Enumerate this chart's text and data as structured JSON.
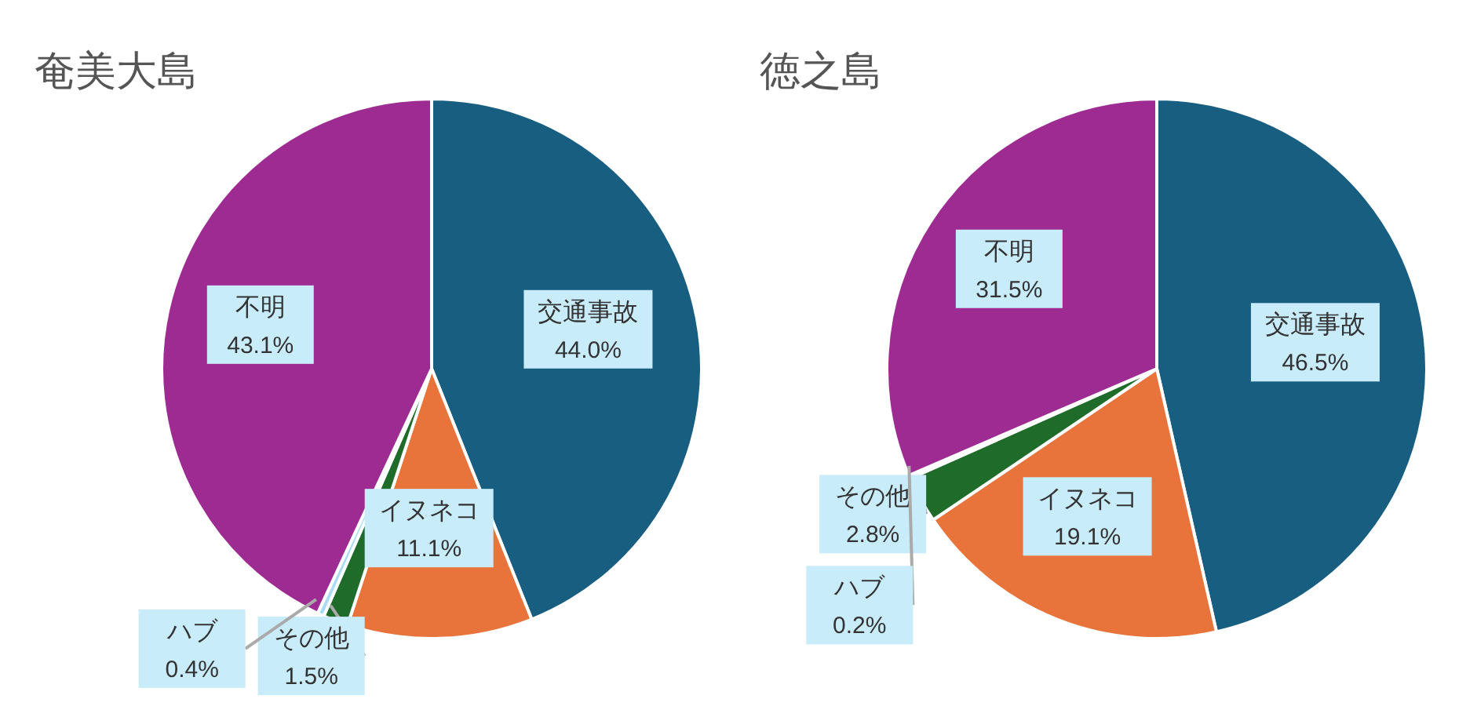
{
  "chart_data": [
    {
      "type": "pie",
      "title": "奄美大島",
      "categories": [
        "交通事故",
        "イヌネコ",
        "その他",
        "ハブ",
        "不明"
      ],
      "values": [
        44.0,
        11.1,
        1.5,
        0.4,
        43.1
      ],
      "value_labels": [
        "44.0%",
        "11.1%",
        "1.5%",
        "0.4%",
        "43.1%"
      ],
      "colors": [
        "#175e80",
        "#e8743b",
        "#1e6b2a",
        "#a9dcf2",
        "#9e2b91"
      ],
      "legend": false
    },
    {
      "type": "pie",
      "title": "徳之島",
      "categories": [
        "交通事故",
        "イヌネコ",
        "その他",
        "ハブ",
        "不明"
      ],
      "values": [
        46.5,
        19.1,
        2.8,
        0.2,
        31.5
      ],
      "value_labels": [
        "46.5%",
        "19.1%",
        "2.8%",
        "0.2%",
        "31.5%"
      ],
      "colors": [
        "#175e80",
        "#e8743b",
        "#1e6b2a",
        "#a9dcf2",
        "#9e2b91"
      ],
      "legend": false
    }
  ]
}
